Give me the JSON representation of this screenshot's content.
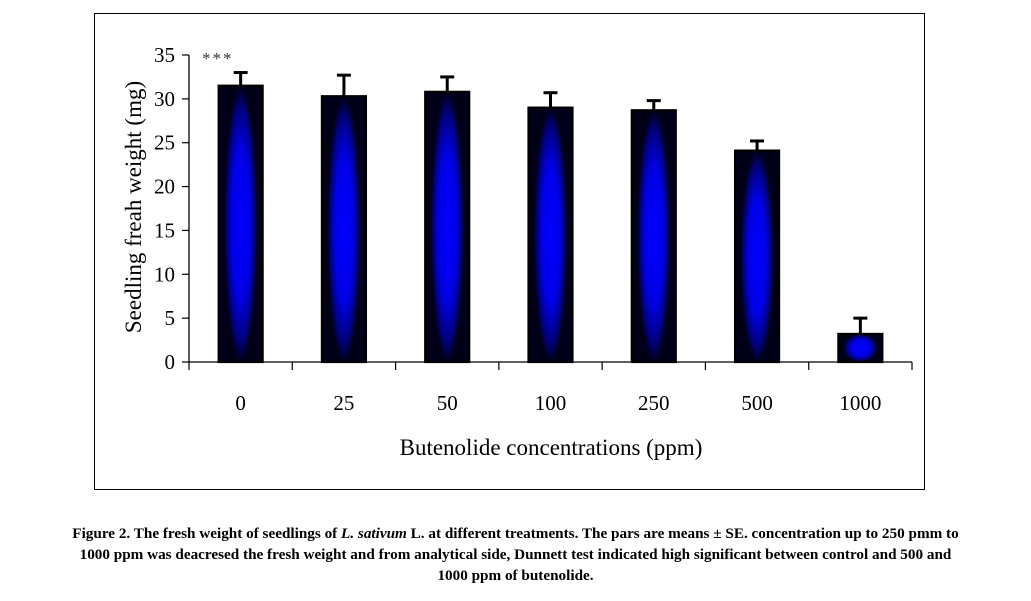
{
  "chart_data": {
    "type": "bar",
    "title": "",
    "xlabel": "Butenolide concentrations (ppm)",
    "ylabel": "Seedling freah weight (mg)",
    "categories": [
      "0",
      "25",
      "50",
      "100",
      "250",
      "500",
      "1000"
    ],
    "values": [
      31.5,
      30.3,
      30.8,
      29.0,
      28.7,
      24.1,
      3.2
    ],
    "error_bars": [
      1.5,
      2.4,
      1.7,
      1.7,
      1.1,
      1.1,
      1.8
    ],
    "ylim": [
      0,
      35
    ],
    "yticks": [
      0,
      5,
      10,
      15,
      20,
      25,
      30,
      35
    ],
    "grid": false,
    "legend": "none",
    "annotations": [
      {
        "text": "***",
        "near_category": "0",
        "position": "top-left"
      }
    ],
    "bar_fill": {
      "center": "#0000ff",
      "edge": "#000020",
      "outline": "#000000"
    }
  },
  "caption": {
    "label": "Figure 2.",
    "line1_pre": " The fresh weight of seedlings of ",
    "species": "L. sativum",
    "line1_post": " L. at different treatments. The pars are means ± SE. concentration up to 250 pmm to",
    "line2": "1000 ppm was deacresed the fresh weight and from analytical side, Dunnett test indicated high significant between control and 500 and",
    "line3": "1000 ppm of butenolide."
  }
}
